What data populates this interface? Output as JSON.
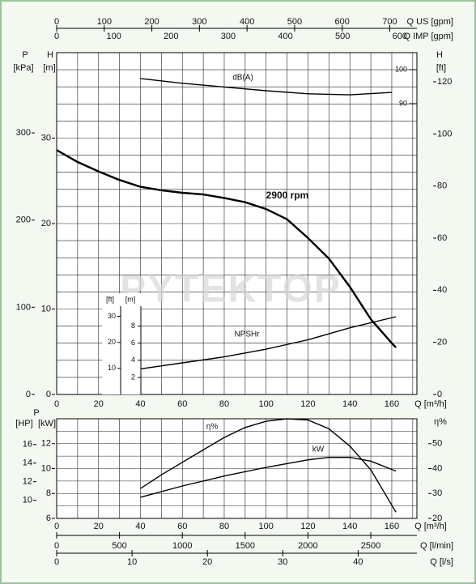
{
  "chart_data": [
    {
      "type": "line",
      "watermark": "PYTEKTOP",
      "xlabel": "Q [m³/h]",
      "xlim": [
        0,
        172
      ],
      "xticks": [
        0,
        20,
        40,
        60,
        80,
        100,
        120,
        140,
        160
      ],
      "xgrid": [
        0,
        10,
        20,
        30,
        40,
        50,
        60,
        70,
        80,
        90,
        100,
        110,
        120,
        130,
        140,
        150,
        160,
        170
      ],
      "x2label": "Q US [gpm]",
      "x2lim": [
        0,
        757
      ],
      "x2ticks": [
        0,
        100,
        200,
        300,
        400,
        500,
        600,
        700
      ],
      "x3label": "Q IMP [gpm]",
      "x3lim": [
        0,
        630
      ],
      "x3ticks": [
        0,
        100,
        200,
        300,
        400,
        500,
        600
      ],
      "ylabel": "H",
      "yunit": "[m]",
      "ylim": [
        0,
        40
      ],
      "yticks": [
        0,
        10,
        20,
        30
      ],
      "ygrid": [
        0,
        2,
        4,
        6,
        8,
        10,
        12,
        14,
        16,
        18,
        20,
        22,
        24,
        26,
        28,
        30,
        32,
        34,
        36,
        38,
        40
      ],
      "plabel": "P",
      "punit": "[kPa]",
      "plim": [
        0,
        392
      ],
      "pticks": [
        0,
        100,
        200,
        300
      ],
      "ftlabel": "H",
      "ftunit": "[ft]",
      "ftlim": [
        0,
        131.2
      ],
      "ftticks": [
        0,
        20,
        40,
        60,
        80,
        100,
        120
      ],
      "dblim": [
        4.5,
        105
      ],
      "dbticks": [
        90,
        100
      ],
      "npsh_munit": "[m]",
      "npsh_mticks": [
        2,
        4,
        6,
        8
      ],
      "npsh_ftunit": "[ft]",
      "npsh_ftticks": [
        10,
        20,
        30
      ],
      "series": [
        {
          "name": "2900 rpm",
          "color": "#000000",
          "axis": "y",
          "x": [
            0,
            10,
            20,
            30,
            40,
            50,
            60,
            70,
            80,
            90,
            100,
            110,
            120,
            130,
            140,
            150,
            160,
            162
          ],
          "values": [
            28.6,
            27.2,
            26.1,
            25.1,
            24.3,
            23.9,
            23.6,
            23.4,
            23.0,
            22.5,
            21.7,
            20.5,
            18.3,
            15.9,
            12.6,
            8.8,
            6.0,
            5.5
          ]
        },
        {
          "name": "NPSHr",
          "color": "#000000",
          "axis": "y",
          "x": [
            40,
            60,
            80,
            100,
            120,
            140,
            162
          ],
          "values": [
            3.0,
            3.7,
            4.4,
            5.3,
            6.4,
            7.8,
            9.1
          ]
        },
        {
          "name": "dB(A)",
          "color": "#000000",
          "axis": "db",
          "x": [
            40,
            60,
            80,
            100,
            120,
            140,
            160
          ],
          "values": [
            97.4,
            96.0,
            94.9,
            93.8,
            92.9,
            92.6,
            93.3
          ]
        }
      ]
    },
    {
      "type": "line",
      "xlabel": "Q [m³/h]",
      "xlim": [
        0,
        172
      ],
      "xticks": [
        0,
        20,
        40,
        60,
        80,
        100,
        120,
        140,
        160
      ],
      "xgrid": [
        0,
        10,
        20,
        30,
        40,
        50,
        60,
        70,
        80,
        90,
        100,
        110,
        120,
        130,
        140,
        150,
        160,
        170
      ],
      "x2label": "Q [l/min]",
      "x2lim": [
        0,
        2867
      ],
      "x2ticks": [
        0,
        500,
        1000,
        1500,
        2000,
        2500
      ],
      "x3label": "Q [l/s]",
      "x3lim": [
        0,
        47.8
      ],
      "x3ticks": [
        0,
        10,
        20,
        30,
        40
      ],
      "ylabel": "P",
      "yunit": "[kW]",
      "ylim": [
        6,
        14
      ],
      "yticks": [
        6,
        8,
        10,
        12
      ],
      "ygrid": [
        6,
        7,
        8,
        9,
        10,
        11,
        12,
        13,
        14
      ],
      "hpunit": "[HP]",
      "hplim": [
        8.05,
        18.77
      ],
      "hpticks": [
        10,
        12,
        14,
        16
      ],
      "etalabel": "η%",
      "etalim": [
        20,
        60
      ],
      "etaticks": [
        20,
        30,
        40,
        50
      ],
      "series": [
        {
          "name": "η%",
          "color": "#000000",
          "axis": "eta",
          "x": [
            40,
            50,
            60,
            70,
            80,
            90,
            100,
            110,
            120,
            130,
            140,
            150,
            162
          ],
          "values": [
            32,
            37.5,
            42.5,
            47.5,
            52.5,
            56.5,
            59,
            60,
            59.5,
            56,
            49,
            39.5,
            22.5
          ]
        },
        {
          "name": "kW",
          "color": "#000000",
          "axis": "y",
          "x": [
            40,
            60,
            80,
            100,
            120,
            130,
            140,
            150,
            162
          ],
          "values": [
            7.7,
            8.6,
            9.4,
            10.1,
            10.7,
            10.9,
            10.9,
            10.6,
            9.8
          ]
        }
      ]
    }
  ]
}
